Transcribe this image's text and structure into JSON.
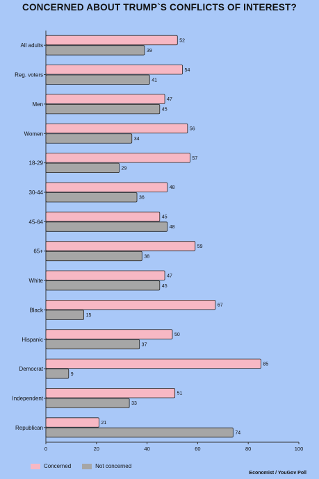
{
  "chart_data": {
    "type": "bar",
    "orientation": "horizontal",
    "title": "CONCERNED ABOUT TRUMP`S CONFLICTS OF INTEREST?",
    "categories": [
      "All adults",
      "Reg. voters",
      "Men",
      "Women",
      "18-29",
      "30-44",
      "45-64",
      "65+",
      "White",
      "Black",
      "Hispanic",
      "Democrat",
      "Independent",
      "Republican"
    ],
    "series": [
      {
        "name": "Concerned",
        "color": "#f7b8c4",
        "values": [
          52,
          54,
          47,
          56,
          57,
          48,
          45,
          59,
          47,
          67,
          50,
          85,
          51,
          21
        ]
      },
      {
        "name": "Not concerned",
        "color": "#a6a6a6",
        "values": [
          39,
          41,
          45,
          34,
          29,
          36,
          48,
          38,
          45,
          15,
          37,
          9,
          33,
          74
        ]
      }
    ],
    "xlim": [
      0,
      100
    ],
    "xticks": [
      "0",
      "20",
      "40",
      "60",
      "80",
      "100"
    ],
    "xlabel": "",
    "ylabel": "",
    "legend_position": "bottom-left",
    "grid": false,
    "source": "Economist / YouGov Poll"
  }
}
